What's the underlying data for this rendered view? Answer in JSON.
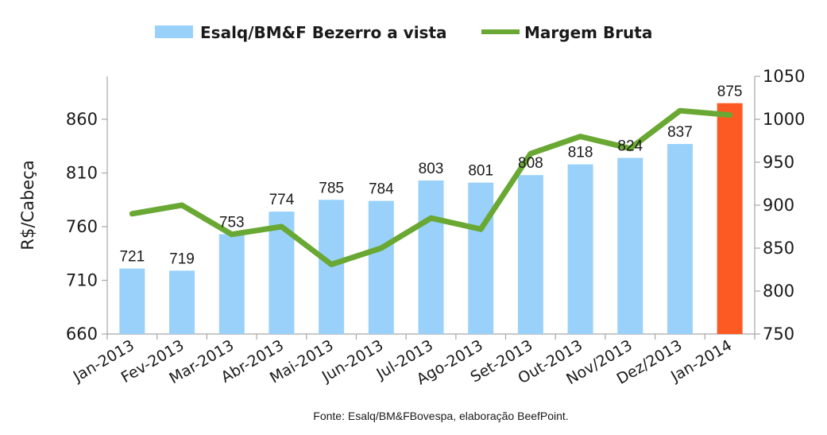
{
  "chart_data": {
    "type": "bar",
    "categories": [
      "Jan-2013",
      "Fev-2013",
      "Mar-2013",
      "Abr-2013",
      "Mai-2013",
      "Jun-2013",
      "Jul-2013",
      "Ago-2013",
      "Set-2013",
      "Out-2013",
      "Nov/2013",
      "Dez/2013",
      "Jan-2014"
    ],
    "series": [
      {
        "name": "Esalq/BM&F Bezerro a vista",
        "type": "bar",
        "axis": "left",
        "values": [
          721,
          719,
          753,
          774,
          785,
          784,
          803,
          801,
          808,
          818,
          824,
          837,
          875
        ],
        "data_labels": [
          "721",
          "719",
          "753",
          "774",
          "785",
          "784",
          "803",
          "801",
          "808",
          "818",
          "824",
          "837",
          "875"
        ],
        "color": "#99d1fb",
        "highlight_color": "#fc5a22",
        "highlight_index": 12
      },
      {
        "name": "Margem Bruta",
        "type": "line",
        "axis": "right",
        "values": [
          890,
          900,
          866,
          875,
          831,
          850,
          885,
          872,
          960,
          980,
          966,
          1010,
          1005
        ],
        "color": "#6aa834"
      }
    ],
    "ylabel": "R$/Cabeça",
    "ylim": [
      660,
      900
    ],
    "y_ticks": [
      "660",
      "710",
      "760",
      "810",
      "860"
    ],
    "y2lim": [
      750,
      1050
    ],
    "y2_ticks": [
      "750",
      "800",
      "850",
      "900",
      "950",
      "1000",
      "1050"
    ],
    "grid": false,
    "legend_position": "top-center"
  },
  "source": "Fonte: Esalq/BM&FBovespa, elaboração BeefPoint."
}
